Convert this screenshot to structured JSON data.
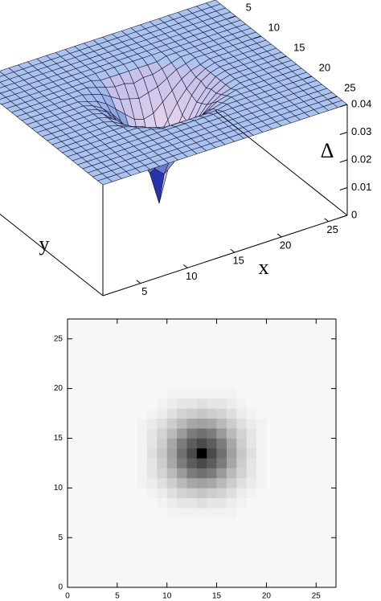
{
  "chart_data": [
    {
      "type": "surface3d",
      "xlabel": "x",
      "ylabel": "y",
      "zlabel": "Δ",
      "xlim": [
        1,
        27
      ],
      "ylim": [
        1,
        27
      ],
      "zlim": [
        0,
        0.04
      ],
      "xticks": [
        5,
        10,
        15,
        20,
        25
      ],
      "yticks": [
        5,
        10,
        15,
        20,
        25
      ],
      "zticks": [
        0,
        0.01,
        0.02,
        0.03,
        0.04
      ],
      "color": "#aac3f0",
      "z": [
        [
          0.04,
          0.04,
          0.04,
          0.04,
          0.04,
          0.04,
          0.04,
          0.04,
          0.04,
          0.04,
          0.04,
          0.04,
          0.04,
          0.04,
          0.04,
          0.04,
          0.04,
          0.04,
          0.04,
          0.04,
          0.04,
          0.04,
          0.04,
          0.04,
          0.04,
          0.04,
          0.04
        ],
        [
          0.04,
          0.04,
          0.04,
          0.04,
          0.04,
          0.04,
          0.04,
          0.04,
          0.04,
          0.04,
          0.04,
          0.04,
          0.04,
          0.04,
          0.04,
          0.04,
          0.04,
          0.04,
          0.04,
          0.04,
          0.04,
          0.04,
          0.04,
          0.04,
          0.04,
          0.04,
          0.04
        ],
        [
          0.04,
          0.04,
          0.04,
          0.04,
          0.04,
          0.04,
          0.04,
          0.04,
          0.04,
          0.04,
          0.04,
          0.04,
          0.04,
          0.04,
          0.04,
          0.04,
          0.04,
          0.04,
          0.04,
          0.04,
          0.04,
          0.04,
          0.04,
          0.04,
          0.04,
          0.04,
          0.04
        ],
        [
          0.04,
          0.04,
          0.04,
          0.04,
          0.04,
          0.04,
          0.04,
          0.04,
          0.04,
          0.04,
          0.04,
          0.04,
          0.04,
          0.04,
          0.04,
          0.04,
          0.04,
          0.04,
          0.04,
          0.04,
          0.04,
          0.04,
          0.04,
          0.04,
          0.04,
          0.04,
          0.04
        ],
        [
          0.04,
          0.04,
          0.04,
          0.04,
          0.04,
          0.04,
          0.04,
          0.04,
          0.04,
          0.04,
          0.04,
          0.04,
          0.04,
          0.04,
          0.04,
          0.04,
          0.04,
          0.04,
          0.04,
          0.04,
          0.04,
          0.04,
          0.04,
          0.04,
          0.04,
          0.04,
          0.04
        ],
        [
          0.04,
          0.04,
          0.04,
          0.04,
          0.04,
          0.04,
          0.04,
          0.04,
          0.04,
          0.04,
          0.04,
          0.04,
          0.04,
          0.04,
          0.04,
          0.04,
          0.04,
          0.04,
          0.04,
          0.04,
          0.04,
          0.04,
          0.04,
          0.04,
          0.04,
          0.04,
          0.04
        ],
        [
          0.04,
          0.04,
          0.04,
          0.04,
          0.04,
          0.04,
          0.04,
          0.04,
          0.04,
          0.04,
          0.04,
          0.04,
          0.04,
          0.04,
          0.04,
          0.04,
          0.04,
          0.04,
          0.04,
          0.04,
          0.04,
          0.04,
          0.04,
          0.04,
          0.04,
          0.04,
          0.04
        ],
        [
          0.04,
          0.04,
          0.04,
          0.04,
          0.04,
          0.04,
          0.04,
          0.04,
          0.04,
          0.04,
          0.039,
          0.039,
          0.039,
          0.039,
          0.039,
          0.039,
          0.039,
          0.04,
          0.04,
          0.04,
          0.04,
          0.04,
          0.04,
          0.04,
          0.04,
          0.04,
          0.04
        ],
        [
          0.04,
          0.04,
          0.04,
          0.04,
          0.04,
          0.04,
          0.04,
          0.04,
          0.04,
          0.039,
          0.038,
          0.037,
          0.037,
          0.036,
          0.037,
          0.037,
          0.038,
          0.039,
          0.04,
          0.04,
          0.04,
          0.04,
          0.04,
          0.04,
          0.04,
          0.04,
          0.04
        ],
        [
          0.04,
          0.04,
          0.04,
          0.04,
          0.04,
          0.04,
          0.04,
          0.04,
          0.039,
          0.038,
          0.036,
          0.034,
          0.033,
          0.032,
          0.033,
          0.034,
          0.036,
          0.038,
          0.039,
          0.04,
          0.04,
          0.04,
          0.04,
          0.04,
          0.04,
          0.04,
          0.04
        ],
        [
          0.04,
          0.04,
          0.04,
          0.04,
          0.04,
          0.04,
          0.04,
          0.039,
          0.038,
          0.036,
          0.033,
          0.03,
          0.027,
          0.026,
          0.027,
          0.03,
          0.033,
          0.036,
          0.038,
          0.039,
          0.04,
          0.04,
          0.04,
          0.04,
          0.04,
          0.04,
          0.04
        ],
        [
          0.04,
          0.04,
          0.04,
          0.04,
          0.04,
          0.04,
          0.04,
          0.039,
          0.037,
          0.034,
          0.03,
          0.025,
          0.02,
          0.018,
          0.02,
          0.025,
          0.03,
          0.034,
          0.037,
          0.039,
          0.04,
          0.04,
          0.04,
          0.04,
          0.04,
          0.04,
          0.04
        ],
        [
          0.04,
          0.04,
          0.04,
          0.04,
          0.04,
          0.04,
          0.04,
          0.039,
          0.037,
          0.033,
          0.027,
          0.02,
          0.015,
          0.012,
          0.015,
          0.02,
          0.027,
          0.033,
          0.037,
          0.039,
          0.04,
          0.04,
          0.04,
          0.04,
          0.04,
          0.04,
          0.04
        ],
        [
          0.04,
          0.04,
          0.04,
          0.04,
          0.04,
          0.04,
          0.04,
          0.039,
          0.036,
          0.032,
          0.026,
          0.018,
          0.012,
          0,
          0.012,
          0.018,
          0.026,
          0.032,
          0.036,
          0.039,
          0.04,
          0.04,
          0.04,
          0.04,
          0.04,
          0.04,
          0.04
        ],
        [
          0.04,
          0.04,
          0.04,
          0.04,
          0.04,
          0.04,
          0.04,
          0.039,
          0.037,
          0.033,
          0.027,
          0.02,
          0.015,
          0.012,
          0.015,
          0.02,
          0.027,
          0.033,
          0.037,
          0.039,
          0.04,
          0.04,
          0.04,
          0.04,
          0.04,
          0.04,
          0.04
        ],
        [
          0.04,
          0.04,
          0.04,
          0.04,
          0.04,
          0.04,
          0.04,
          0.039,
          0.037,
          0.034,
          0.03,
          0.025,
          0.02,
          0.018,
          0.02,
          0.025,
          0.03,
          0.034,
          0.037,
          0.039,
          0.04,
          0.04,
          0.04,
          0.04,
          0.04,
          0.04,
          0.04
        ],
        [
          0.04,
          0.04,
          0.04,
          0.04,
          0.04,
          0.04,
          0.04,
          0.039,
          0.038,
          0.036,
          0.033,
          0.03,
          0.027,
          0.026,
          0.027,
          0.03,
          0.033,
          0.036,
          0.038,
          0.039,
          0.04,
          0.04,
          0.04,
          0.04,
          0.04,
          0.04,
          0.04
        ],
        [
          0.04,
          0.04,
          0.04,
          0.04,
          0.04,
          0.04,
          0.04,
          0.04,
          0.039,
          0.038,
          0.036,
          0.034,
          0.033,
          0.032,
          0.033,
          0.034,
          0.036,
          0.038,
          0.039,
          0.04,
          0.04,
          0.04,
          0.04,
          0.04,
          0.04,
          0.04,
          0.04
        ],
        [
          0.04,
          0.04,
          0.04,
          0.04,
          0.04,
          0.04,
          0.04,
          0.04,
          0.04,
          0.039,
          0.038,
          0.037,
          0.037,
          0.036,
          0.037,
          0.037,
          0.038,
          0.039,
          0.04,
          0.04,
          0.04,
          0.04,
          0.04,
          0.04,
          0.04,
          0.04,
          0.04
        ],
        [
          0.04,
          0.04,
          0.04,
          0.04,
          0.04,
          0.04,
          0.04,
          0.04,
          0.04,
          0.04,
          0.039,
          0.039,
          0.039,
          0.039,
          0.039,
          0.039,
          0.039,
          0.04,
          0.04,
          0.04,
          0.04,
          0.04,
          0.04,
          0.04,
          0.04,
          0.04,
          0.04
        ],
        [
          0.04,
          0.04,
          0.04,
          0.04,
          0.04,
          0.04,
          0.04,
          0.04,
          0.04,
          0.04,
          0.04,
          0.04,
          0.04,
          0.04,
          0.04,
          0.04,
          0.04,
          0.04,
          0.04,
          0.04,
          0.04,
          0.04,
          0.04,
          0.04,
          0.04,
          0.04,
          0.04
        ],
        [
          0.04,
          0.04,
          0.04,
          0.04,
          0.04,
          0.04,
          0.04,
          0.04,
          0.04,
          0.04,
          0.04,
          0.04,
          0.04,
          0.04,
          0.04,
          0.04,
          0.04,
          0.04,
          0.04,
          0.04,
          0.04,
          0.04,
          0.04,
          0.04,
          0.04,
          0.04,
          0.04
        ],
        [
          0.04,
          0.04,
          0.04,
          0.04,
          0.04,
          0.04,
          0.04,
          0.04,
          0.04,
          0.04,
          0.04,
          0.04,
          0.04,
          0.04,
          0.04,
          0.04,
          0.04,
          0.04,
          0.04,
          0.04,
          0.04,
          0.04,
          0.04,
          0.04,
          0.04,
          0.04,
          0.04
        ],
        [
          0.04,
          0.04,
          0.04,
          0.04,
          0.04,
          0.04,
          0.04,
          0.04,
          0.04,
          0.04,
          0.04,
          0.04,
          0.04,
          0.04,
          0.04,
          0.04,
          0.04,
          0.04,
          0.04,
          0.04,
          0.04,
          0.04,
          0.04,
          0.04,
          0.04,
          0.04,
          0.04
        ],
        [
          0.04,
          0.04,
          0.04,
          0.04,
          0.04,
          0.04,
          0.04,
          0.04,
          0.04,
          0.04,
          0.04,
          0.04,
          0.04,
          0.04,
          0.04,
          0.04,
          0.04,
          0.04,
          0.04,
          0.04,
          0.04,
          0.04,
          0.04,
          0.04,
          0.04,
          0.04,
          0.04
        ],
        [
          0.04,
          0.04,
          0.04,
          0.04,
          0.04,
          0.04,
          0.04,
          0.04,
          0.04,
          0.04,
          0.04,
          0.04,
          0.04,
          0.04,
          0.04,
          0.04,
          0.04,
          0.04,
          0.04,
          0.04,
          0.04,
          0.04,
          0.04,
          0.04,
          0.04,
          0.04,
          0.04
        ],
        [
          0.04,
          0.04,
          0.04,
          0.04,
          0.04,
          0.04,
          0.04,
          0.04,
          0.04,
          0.04,
          0.04,
          0.04,
          0.04,
          0.04,
          0.04,
          0.04,
          0.04,
          0.04,
          0.04,
          0.04,
          0.04,
          0.04,
          0.04,
          0.04,
          0.04,
          0.04,
          0.04
        ]
      ]
    },
    {
      "type": "heatmap",
      "xlim": [
        0,
        27
      ],
      "ylim": [
        0,
        27
      ],
      "xticks": [
        0,
        5,
        10,
        15,
        20,
        25
      ],
      "yticks": [
        0,
        5,
        10,
        15,
        20,
        25
      ]
    }
  ]
}
